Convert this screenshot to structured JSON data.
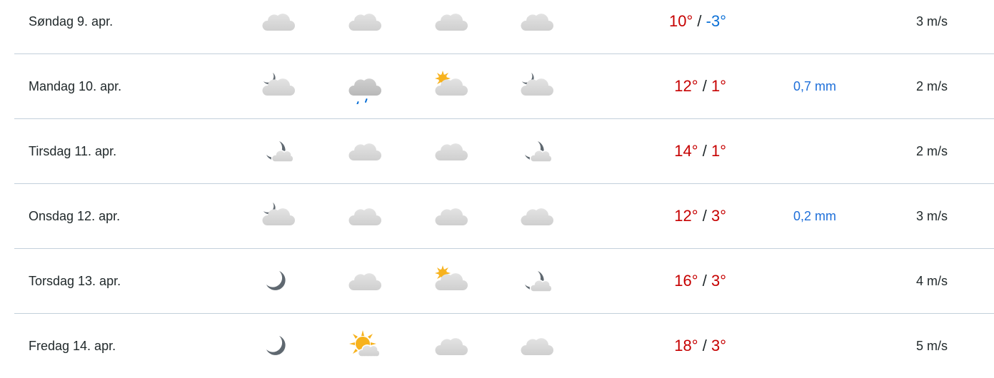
{
  "colors": {
    "warm": "#c60000",
    "cold": "#0a6fd6",
    "precip": "#1e6fd9",
    "divider": "#c3d0db"
  },
  "rows": [
    {
      "day": "Søndag 9. apr.",
      "icons": [
        "cloudy",
        "cloudy",
        "cloudy",
        "cloudy"
      ],
      "max": "10°",
      "min": "-3°",
      "min_cold": true,
      "precip": "",
      "wind": "3 m/s"
    },
    {
      "day": "Mandag 10. apr.",
      "icons": [
        "partly-cloudy-night",
        "light-rain",
        "partly-cloudy-day",
        "partly-cloudy-night"
      ],
      "max": "12°",
      "min": "1°",
      "min_cold": false,
      "precip": "0,7 mm",
      "wind": "2 m/s"
    },
    {
      "day": "Tirsdag 11. apr.",
      "icons": [
        "fair-night",
        "cloudy",
        "cloudy",
        "fair-night"
      ],
      "max": "14°",
      "min": "1°",
      "min_cold": false,
      "precip": "",
      "wind": "2 m/s"
    },
    {
      "day": "Onsdag 12. apr.",
      "icons": [
        "partly-cloudy-night",
        "cloudy",
        "cloudy",
        "cloudy"
      ],
      "max": "12°",
      "min": "3°",
      "min_cold": false,
      "precip": "0,2 mm",
      "wind": "3 m/s"
    },
    {
      "day": "Torsdag 13. apr.",
      "icons": [
        "clear-night",
        "cloudy",
        "partly-cloudy-day",
        "fair-night"
      ],
      "max": "16°",
      "min": "3°",
      "min_cold": false,
      "precip": "",
      "wind": "4 m/s"
    },
    {
      "day": "Fredag 14. apr.",
      "icons": [
        "clear-night",
        "fair-day",
        "cloudy",
        "cloudy"
      ],
      "max": "18°",
      "min": "3°",
      "min_cold": false,
      "precip": "",
      "wind": "5 m/s"
    }
  ],
  "separator": "/"
}
